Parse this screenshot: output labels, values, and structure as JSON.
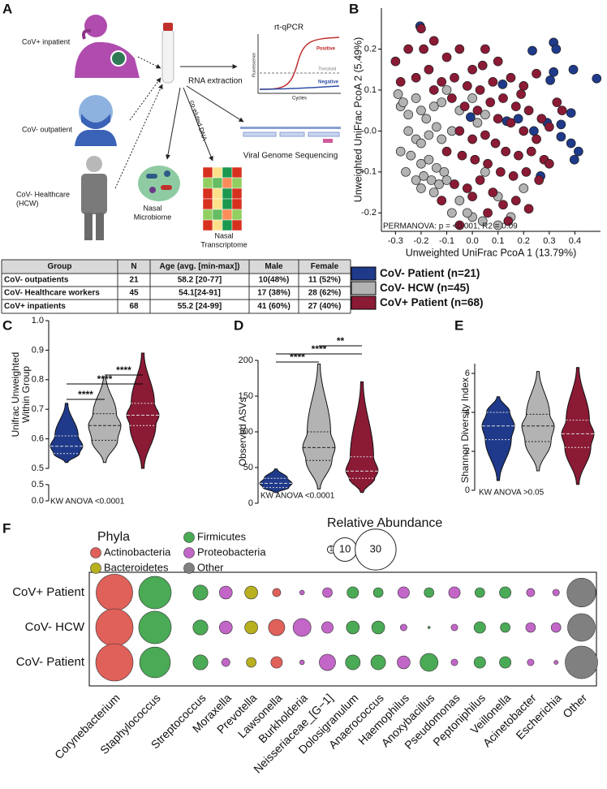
{
  "panels": [
    "A",
    "B",
    "C",
    "D",
    "E",
    "F"
  ],
  "workflow": {
    "inpatient": "CoV+ inpatient",
    "outpatient": "CoV- outpatient",
    "hcw": [
      "CoV- Healthcare",
      "(HCW)"
    ],
    "extraction": "RNA extraction",
    "qpcr": {
      "title": "rt-qPCR",
      "positive": "Positive",
      "threshold": "Threshold",
      "negative": "Negative",
      "x_label": "Cycles",
      "y_label": "Fluorescence"
    },
    "coeluted": "co-eluted DNA",
    "sequencing": "Viral Genome Sequencing",
    "microbiome": [
      "Nasal",
      "Microbiome"
    ],
    "transcriptome": [
      "Nasal",
      "Transcriptome"
    ]
  },
  "table": {
    "header": [
      "Group",
      "N",
      "Age (avg. [min-max])",
      "Male",
      "Female"
    ],
    "rows": [
      [
        "CoV- outpatients",
        21,
        "58.2 [20-77]",
        "10(48%)",
        "11 (52%)"
      ],
      [
        "CoV- Healthcare workers",
        45,
        "54.1[24-91]",
        "17 (38%)",
        "28 (62%)"
      ],
      [
        "CoV+ inpatients",
        68,
        "55.2 [24-99]",
        "41 (60%)",
        "27 (40%)"
      ]
    ]
  },
  "chart_data": [
    {
      "type": "scatter",
      "x_label": "Unweighted UniFrac PcoA 1 (13.79%)",
      "y_label": "Unweighted UniFrac PcoA 2 (5.49%)",
      "annotation": "PERMANOVA: p = <0.001, R2 = 0.09",
      "xlim": [
        -0.355,
        0.5
      ],
      "ylim": [
        -0.245,
        0.3
      ],
      "xticks": [
        -0.3,
        -0.2,
        -0.1,
        {
          "value": 0,
          "label": "0.0"
        },
        0.1,
        0.2,
        0.3,
        0.4
      ],
      "yticks": [
        -0.2,
        -0.1,
        {
          "value": 0,
          "label": "-0.0"
        },
        0.1,
        0.2
      ],
      "series": [
        {
          "name": "CoV- Patient (n=21)",
          "color": "#1f3a8a",
          "x": [
            -0.204,
            0.317,
            0.327,
            0.234,
            0.394,
            0.317,
            0.304,
            0.485,
            0.118,
            -0.007,
            0.179,
            0.134,
            0.292,
            0.346,
            0.385,
            0.24,
            0.346,
            0.385,
            0.414,
            0.398,
            0.266
          ],
          "values": [
            0.256,
            0.216,
            0.2,
            0.196,
            0.15,
            0.144,
            0.124,
            0.128,
            0.114,
            0.034,
            0.03,
            0.024,
            0.02,
            0.016,
            0.044,
            0.0,
            -0.014,
            -0.03,
            -0.05,
            -0.07,
            -0.11
          ]
        },
        {
          "name": "CoV- HCW (n=45)",
          "color": "#b3b3b3",
          "x": [
            -0.29,
            -0.28,
            -0.27,
            -0.25,
            -0.22,
            -0.2,
            -0.18,
            -0.15,
            -0.12,
            -0.1,
            -0.05,
            0.0,
            0.05,
            -0.25,
            -0.22,
            -0.2,
            -0.17,
            -0.14,
            -0.12,
            -0.08,
            -0.28,
            -0.24,
            -0.2,
            -0.17,
            -0.14,
            -0.11,
            -0.26,
            -0.22,
            -0.19,
            -0.16,
            -0.13,
            -0.1,
            -0.2,
            -0.15,
            -0.05,
            0.0,
            -0.02,
            0.04,
            0.1,
            0.15,
            0.2,
            0.05,
            0.1,
            -0.08,
            0.02
          ],
          "values": [
            0.09,
            0.06,
            0.07,
            0.04,
            0.08,
            0.05,
            0.03,
            0.06,
            0.07,
            0.1,
            0.05,
            0.08,
            0.04,
            0.0,
            -0.02,
            -0.03,
            -0.01,
            0.01,
            -0.02,
            0.0,
            -0.05,
            -0.06,
            -0.08,
            -0.07,
            -0.09,
            -0.1,
            -0.1,
            -0.12,
            -0.11,
            -0.12,
            -0.13,
            -0.12,
            -0.14,
            -0.15,
            -0.17,
            -0.21,
            -0.2,
            -0.22,
            -0.23,
            -0.21,
            -0.14,
            -0.1,
            -0.16,
            -0.2,
            0.02
          ]
        },
        {
          "name": "CoV+ Patient (n=68)",
          "color": "#8b1a35",
          "x": [
            -0.3,
            -0.25,
            -0.2,
            -0.15,
            -0.1,
            -0.05,
            0.0,
            0.05,
            0.1,
            0.15,
            0.2,
            0.25,
            -0.28,
            -0.22,
            -0.17,
            -0.12,
            -0.07,
            -0.02,
            0.03,
            0.08,
            0.12,
            0.17,
            0.22,
            0.27,
            0.33,
            -0.08,
            -0.03,
            0.02,
            0.07,
            0.1,
            0.15,
            0.2,
            0.25,
            0.3,
            0.35,
            -0.05,
            0.0,
            0.05,
            0.09,
            0.13,
            0.18,
            0.23,
            0.28,
            -0.1,
            -0.04,
            0.01,
            0.06,
            0.11,
            0.16,
            0.21,
            0.26,
            -0.07,
            -0.02,
            0.03,
            0.08,
            0.12,
            0.17,
            0.22,
            -0.05,
            0.0,
            0.06,
            0.14,
            -0.12,
            -0.15,
            0.3,
            0.19,
            0.04,
            -0.19
          ],
          "values": [
            0.17,
            0.2,
            0.25,
            0.22,
            0.18,
            0.2,
            0.15,
            0.2,
            0.17,
            0.13,
            0.11,
            0.14,
            0.12,
            0.13,
            0.15,
            0.12,
            0.13,
            0.11,
            0.1,
            0.12,
            0.08,
            0.06,
            0.05,
            0.03,
            0.07,
            0.08,
            0.06,
            0.05,
            0.07,
            0.03,
            0.02,
            0.0,
            -0.02,
            0.01,
            0.05,
            0.0,
            -0.02,
            -0.01,
            -0.03,
            -0.05,
            -0.06,
            -0.05,
            -0.07,
            -0.05,
            -0.06,
            -0.07,
            -0.08,
            -0.1,
            -0.11,
            -0.1,
            -0.12,
            -0.13,
            -0.14,
            -0.12,
            -0.15,
            -0.18,
            -0.17,
            -0.19,
            -0.23,
            -0.16,
            -0.2,
            -0.22,
            -0.17,
            0.1,
            -0.08,
            0.09,
            0.16,
            0.2
          ]
        }
      ]
    },
    {
      "type": "violin",
      "y_label": [
        "Unifrac Unweighted",
        "Within Group"
      ],
      "ylim": [
        0.5,
        1
      ],
      "yticks": [
        0.5,
        0.6,
        0.7,
        0.8,
        0.9,
        {
          "value": 1,
          "label": "1.0"
        }
      ],
      "ylim_lower": [
        0,
        0.5
      ],
      "yticks_lower": [
        {
          "value": 0,
          "label": "0.0"
        },
        0.5
      ],
      "annotation": "KW ANOVA <0.0001",
      "groups": [
        {
          "color": "#1f3a8a",
          "min": 0.52,
          "q1": 0.55,
          "median": 0.575,
          "q3": 0.61,
          "max": 0.72
        },
        {
          "color": "#b3b3b3",
          "min": 0.52,
          "q1": 0.595,
          "median": 0.645,
          "q3": 0.685,
          "max": 0.81
        },
        {
          "color": "#8b1a35",
          "min": 0.5,
          "q1": 0.645,
          "median": 0.68,
          "q3": 0.72,
          "max": 0.89
        }
      ],
      "significance": [
        {
          "from": 0,
          "to": 1,
          "label": "****"
        },
        {
          "from": 0,
          "to": 2,
          "label": "****"
        },
        {
          "from": 1,
          "to": 2,
          "label": "****"
        }
      ]
    },
    {
      "type": "violin",
      "y_label": "Observed ASVs",
      "ylim": [
        0,
        200
      ],
      "yticks": [
        0,
        50,
        100,
        150,
        200
      ],
      "annotation": "KW ANOVA <0.0001",
      "groups": [
        {
          "color": "#1f3a8a",
          "min": 15,
          "q1": 22,
          "median": 28,
          "q3": 35,
          "max": 48
        },
        {
          "color": "#b3b3b3",
          "min": 20,
          "q1": 60,
          "median": 78,
          "q3": 100,
          "max": 195
        },
        {
          "color": "#8b1a35",
          "min": 15,
          "q1": 35,
          "median": 45,
          "q3": 65,
          "max": 170
        }
      ],
      "significance": [
        {
          "from": 0,
          "to": 1,
          "label": "****"
        },
        {
          "from": 0,
          "to": 2,
          "label": "****"
        },
        {
          "from": 1,
          "to": 2,
          "label": "**"
        }
      ]
    },
    {
      "type": "violin",
      "y_label": "Shannon Diversity Index",
      "ylim": [
        0,
        6.5
      ],
      "yticks": [
        0,
        2,
        4,
        6
      ],
      "annotation": "KW ANOVA >0.05",
      "groups": [
        {
          "color": "#1f3a8a",
          "min": 0.5,
          "q1": 2.6,
          "median": 3.3,
          "q3": 4,
          "max": 4.8
        },
        {
          "color": "#b3b3b3",
          "min": 1,
          "q1": 2.5,
          "median": 3.3,
          "q3": 3.9,
          "max": 6.1
        },
        {
          "color": "#8b1a35",
          "min": 0.3,
          "q1": 2.2,
          "median": 2.9,
          "q3": 3.6,
          "max": 6.3
        }
      ]
    },
    {
      "type": "bubble",
      "legend_title": "Phyla",
      "phyla": [
        {
          "name": "Actinobacteria",
          "color": "#e0605a"
        },
        {
          "name": "Bacteroidetes",
          "color": "#b8b01e"
        },
        {
          "name": "Firmicutes",
          "color": "#4aaa55"
        },
        {
          "name": "Proteobacteria",
          "color": "#c266c8"
        },
        {
          "name": "Other",
          "color": "#808080"
        }
      ],
      "size_title": "Relative Abundance",
      "size_legend": [
        1,
        10,
        30
      ],
      "categories": [
        "Corynebacterium",
        "Staphylococcus",
        "Streptococcus",
        "Moraxella",
        "Prevotella",
        "Lawsonella",
        "Burkholderia",
        "Neisseriaceae_[G−1]",
        "Dolosigranulum",
        "Anaerococcus",
        "Haemophilus",
        "Anoxybacillus",
        "Pseudomonas",
        "Peptoniphilus",
        "Veillonella",
        "Acinetobacter",
        "Escherichia",
        "Other"
      ],
      "phylum": [
        0,
        2,
        2,
        3,
        1,
        0,
        3,
        3,
        2,
        2,
        3,
        2,
        3,
        2,
        2,
        3,
        3,
        4
      ],
      "series": [
        {
          "name": "CoV+ Patient",
          "values": [
            24,
            19,
            4,
            3,
            3,
            1.2,
            0.4,
            1.7,
            2.4,
            1.7,
            2.4,
            1.7,
            2.4,
            1.7,
            2.4,
            1.2,
            0.8,
            15
          ]
        },
        {
          "name": "CoV- HCW",
          "values": [
            25,
            19,
            4,
            3,
            3,
            4.8,
            5.8,
            2.4,
            3,
            3,
            0.8,
            0.1,
            0.8,
            2.4,
            1.7,
            1.7,
            1.7,
            13.7
          ]
        },
        {
          "name": "CoV- Patient",
          "values": [
            25,
            17,
            4,
            1.2,
            1.7,
            2.4,
            0.4,
            4.8,
            3.9,
            3.9,
            3,
            5.8,
            0.8,
            2.4,
            2.4,
            0.8,
            0.3,
            19
          ]
        }
      ]
    }
  ]
}
